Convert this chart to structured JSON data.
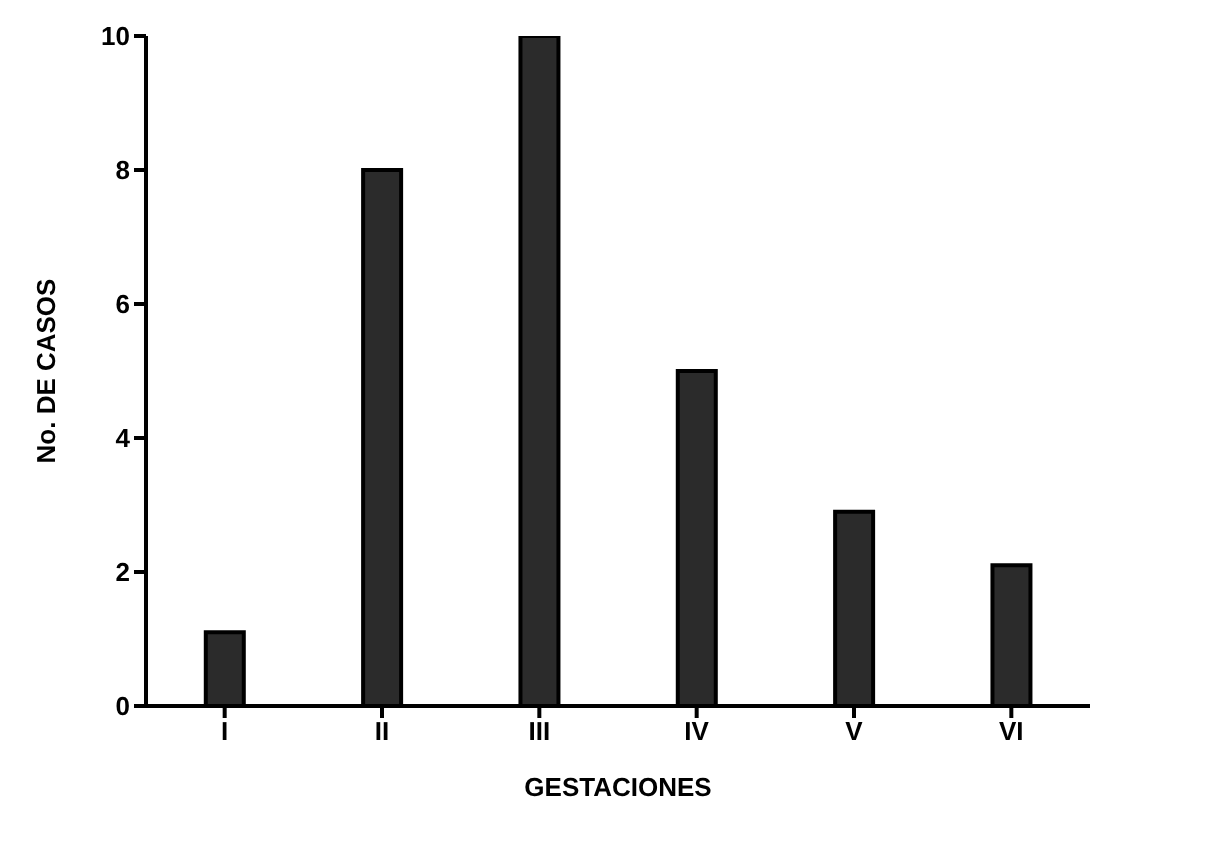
{
  "chart_data": {
    "type": "bar",
    "xlabel": "GESTACIONES",
    "ylabel": "No. DE CASOS",
    "categories": [
      "I",
      "II",
      "III",
      "IV",
      "V",
      "VI"
    ],
    "values": [
      1.1,
      8,
      10,
      5,
      2.9,
      2.1
    ],
    "color": "#2b2b2b",
    "ylim": [
      0,
      10
    ],
    "yticks": [
      0,
      2,
      4,
      6,
      8,
      10
    ],
    "grid": false,
    "legend": false
  }
}
